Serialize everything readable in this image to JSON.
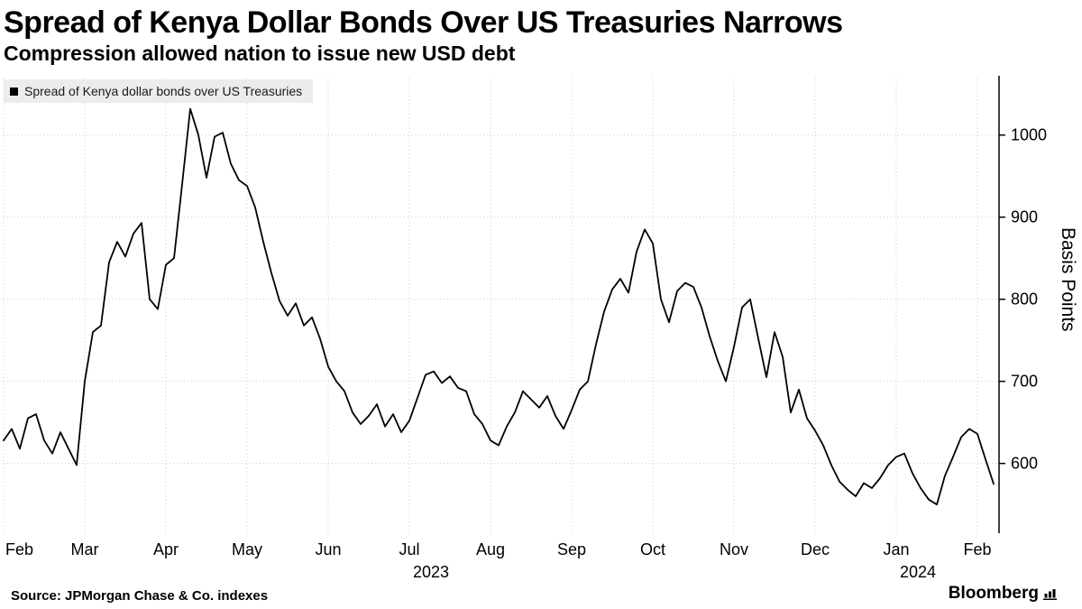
{
  "header": {
    "title": "Spread of Kenya Dollar Bonds Over US Treasuries Narrows",
    "subtitle": "Compression allowed nation to issue new USD debt"
  },
  "legend": {
    "label": "Spread of Kenya dollar bonds over US Treasuries"
  },
  "footer": {
    "source": "Source: JPMorgan Chase & Co. indexes",
    "brand": "Bloomberg"
  },
  "chart_data": {
    "type": "line",
    "title": "Spread of Kenya Dollar Bonds Over US Treasuries Narrows",
    "subtitle": "Compression allowed nation to issue new USD debt",
    "ylabel": "Basis Points",
    "ylim": [
      515,
      1070
    ],
    "yticks": [
      600,
      700,
      800,
      900,
      1000
    ],
    "grid": "dotted",
    "legend_position": "top-left",
    "line_color": "#000000",
    "grid_color": "#cccccc",
    "x_tick_labels": [
      "Feb",
      "Mar",
      "Apr",
      "May",
      "Jun",
      "Jul",
      "Aug",
      "Sep",
      "Oct",
      "Nov",
      "Dec",
      "Jan",
      "Feb"
    ],
    "year_labels": [
      {
        "label": "2023",
        "month_index": 5
      },
      {
        "label": "2024",
        "month_index": 11
      }
    ],
    "points_per_month": 10,
    "series": [
      {
        "name": "Spread of Kenya dollar bonds over US Treasuries",
        "values": [
          628,
          642,
          618,
          655,
          660,
          628,
          612,
          638,
          618,
          598,
          700,
          760,
          768,
          845,
          870,
          852,
          880,
          893,
          800,
          788,
          842,
          850,
          940,
          1032,
          1000,
          948,
          998,
          1003,
          965,
          945,
          938,
          912,
          870,
          832,
          798,
          780,
          795,
          768,
          778,
          752,
          718,
          700,
          688,
          662,
          648,
          658,
          672,
          645,
          660,
          638,
          652,
          680,
          708,
          712,
          698,
          706,
          692,
          688,
          660,
          648,
          628,
          622,
          645,
          662,
          688,
          678,
          668,
          682,
          658,
          642,
          665,
          690,
          700,
          745,
          785,
          812,
          825,
          808,
          858,
          885,
          868,
          800,
          772,
          810,
          820,
          815,
          790,
          755,
          725,
          700,
          742,
          790,
          800,
          752,
          705,
          760,
          730,
          662,
          690,
          655,
          640,
          622,
          598,
          578,
          568,
          560,
          576,
          570,
          582,
          598,
          608,
          612,
          588,
          570,
          556,
          550,
          585,
          608,
          632,
          642,
          636,
          605,
          575
        ]
      }
    ]
  }
}
